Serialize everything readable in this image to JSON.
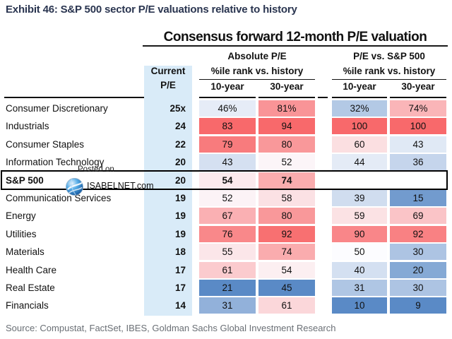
{
  "exhibit_title": "Exhibit 46: S&P 500 sector P/E valuations relative to history",
  "table_title": "Consensus forward 12-month P/E valuation",
  "source": "Source: Compustat, FactSet, IBES, Goldman Sachs Global Investment Research",
  "watermark": {
    "line1": "Posted on",
    "line2": "ISABELNET.com",
    "logo": "globe-icon"
  },
  "header": {
    "group_absolute": "Absolute P/E",
    "group_relative": "P/E vs. S&P 500",
    "current_line1": "Current",
    "current_line2": "P/E",
    "pctile_label_absolute": "%ile rank vs. history",
    "pctile_label_relative": "%ile rank vs. history",
    "col_10yr": "10-year",
    "col_30yr": "30-year"
  },
  "colors": {
    "heat_max_red": "#F8696B",
    "heat_mid_white": "#FCFCFF",
    "heat_min_blue": "#5A8AC6",
    "heat_midpoint_value": 50,
    "current_pe_column_bg": "#D9EBF8",
    "exhibit_title_color": "#2A3550",
    "source_text_color": "#6A6F75"
  },
  "chart_data": {
    "type": "heatmap",
    "title": "Consensus forward 12-month P/E valuation",
    "columns": [
      "Current P/E",
      "Absolute P/E %ile rank 10-year",
      "Absolute P/E %ile rank 30-year",
      "P/E vs. S&P 500 %ile rank 10-year",
      "P/E vs. S&P 500 %ile rank 30-year"
    ],
    "legend_note": "red = high percentile, blue = low percentile, white = 50th",
    "rows": [
      {
        "sector": "Consumer Discretionary",
        "pe": "25x",
        "cells": [
          {
            "t": "46%",
            "v": 46,
            "bg": "#E6ECF7"
          },
          {
            "t": "81%",
            "v": 81,
            "bg": "#F99497"
          },
          {
            "t": "32%",
            "v": 32,
            "bg": "#B3C9E5"
          },
          {
            "t": "74%",
            "v": 74,
            "bg": "#FAB5B8"
          }
        ]
      },
      {
        "sector": "Industrials",
        "pe": "24",
        "cells": [
          {
            "t": "83",
            "v": 83,
            "bg": "#F8696B"
          },
          {
            "t": "94",
            "v": 94,
            "bg": "#F8696B"
          },
          {
            "t": "100",
            "v": 100,
            "bg": "#F8696B"
          },
          {
            "t": "100",
            "v": 100,
            "bg": "#F8696B"
          }
        ]
      },
      {
        "sector": "Consumer Staples",
        "pe": "22",
        "cells": [
          {
            "t": "79",
            "v": 79,
            "bg": "#F87B7D"
          },
          {
            "t": "80",
            "v": 80,
            "bg": "#F9989A"
          },
          {
            "t": "60",
            "v": 60,
            "bg": "#FBDFE1"
          },
          {
            "t": "43",
            "v": 43,
            "bg": "#E0E9F5"
          }
        ]
      },
      {
        "sector": "Information Technology",
        "pe": "20",
        "cells": [
          {
            "t": "43",
            "v": 43,
            "bg": "#D5E0F1"
          },
          {
            "t": "52",
            "v": 52,
            "bg": "#FCF5F8"
          },
          {
            "t": "44",
            "v": 44,
            "bg": "#E4EBF6"
          },
          {
            "t": "36",
            "v": 36,
            "bg": "#C5D5EC"
          }
        ]
      },
      {
        "sector": "S&P 500",
        "pe": "20",
        "highlight": true,
        "cells": [
          {
            "t": "54",
            "v": 54,
            "bg": "#FCEAED"
          },
          {
            "t": "74",
            "v": 74,
            "bg": "#FAACAE"
          },
          null,
          null
        ]
      },
      {
        "sector": "Communication Services",
        "pe": "19",
        "cells": [
          {
            "t": "52",
            "v": 52,
            "bg": "#FCF3F6"
          },
          {
            "t": "58",
            "v": 58,
            "bg": "#FBE1E4"
          },
          {
            "t": "39",
            "v": 39,
            "bg": "#D0DDEF"
          },
          {
            "t": "15",
            "v": 15,
            "bg": "#729BCE"
          }
        ]
      },
      {
        "sector": "Energy",
        "pe": "19",
        "cells": [
          {
            "t": "67",
            "v": 67,
            "bg": "#FAB0B3"
          },
          {
            "t": "80",
            "v": 80,
            "bg": "#F9989A"
          },
          {
            "t": "59",
            "v": 59,
            "bg": "#FBE2E4"
          },
          {
            "t": "69",
            "v": 69,
            "bg": "#FAC4C7"
          }
        ]
      },
      {
        "sector": "Utilities",
        "pe": "19",
        "cells": [
          {
            "t": "76",
            "v": 76,
            "bg": "#F9888A"
          },
          {
            "t": "92",
            "v": 92,
            "bg": "#F87071"
          },
          {
            "t": "90",
            "v": 90,
            "bg": "#F98689"
          },
          {
            "t": "92",
            "v": 92,
            "bg": "#F98183"
          }
        ]
      },
      {
        "sector": "Materials",
        "pe": "18",
        "cells": [
          {
            "t": "55",
            "v": 55,
            "bg": "#FBE6E9"
          },
          {
            "t": "74",
            "v": 74,
            "bg": "#FAACAE"
          },
          {
            "t": "50",
            "v": 50,
            "bg": "#FCFCFF"
          },
          {
            "t": "30",
            "v": 30,
            "bg": "#ADC4E3"
          }
        ]
      },
      {
        "sector": "Health Care",
        "pe": "17",
        "cells": [
          {
            "t": "61",
            "v": 61,
            "bg": "#FBCBCE"
          },
          {
            "t": "54",
            "v": 54,
            "bg": "#FCEFF1"
          },
          {
            "t": "40",
            "v": 40,
            "bg": "#D4E0F1"
          },
          {
            "t": "20",
            "v": 20,
            "bg": "#85A9D5"
          }
        ]
      },
      {
        "sector": "Real Estate",
        "pe": "17",
        "cells": [
          {
            "t": "21",
            "v": 21,
            "bg": "#5A8AC6"
          },
          {
            "t": "45",
            "v": 45,
            "bg": "#5A8AC6"
          },
          {
            "t": "31",
            "v": 31,
            "bg": "#AFC6E4"
          },
          {
            "t": "30",
            "v": 30,
            "bg": "#ADC4E3"
          }
        ]
      },
      {
        "sector": "Financials",
        "pe": "14",
        "cells": [
          {
            "t": "31",
            "v": 31,
            "bg": "#92B1DA"
          },
          {
            "t": "61",
            "v": 61,
            "bg": "#FBD7DA"
          },
          {
            "t": "10",
            "v": 10,
            "bg": "#5A8AC6"
          },
          {
            "t": "9",
            "v": 9,
            "bg": "#5A8AC6"
          }
        ]
      }
    ]
  }
}
